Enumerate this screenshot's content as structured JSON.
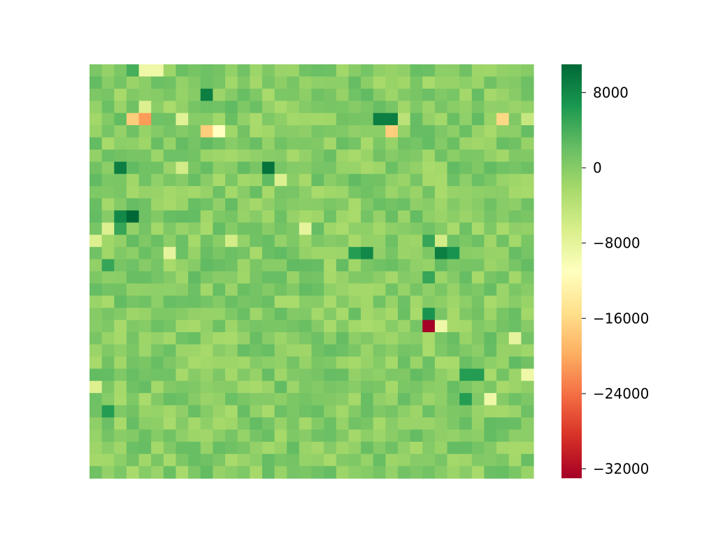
{
  "chart_data": {
    "type": "heatmap",
    "title": "",
    "xlabel": "",
    "ylabel": "",
    "rows": 34,
    "cols": 36,
    "colormap": "RdYlGn",
    "value_range": [
      -33000,
      11000
    ],
    "background_value": 0,
    "notable_cells": [
      {
        "row": 0,
        "col": 3,
        "value": 4000
      },
      {
        "row": 0,
        "col": 4,
        "value": -9000
      },
      {
        "row": 0,
        "col": 5,
        "value": -9000
      },
      {
        "row": 2,
        "col": 9,
        "value": 9000
      },
      {
        "row": 3,
        "col": 4,
        "value": -7000
      },
      {
        "row": 4,
        "col": 3,
        "value": -17000
      },
      {
        "row": 4,
        "col": 4,
        "value": -21000
      },
      {
        "row": 4,
        "col": 7,
        "value": -7500
      },
      {
        "row": 4,
        "col": 23,
        "value": 9000
      },
      {
        "row": 4,
        "col": 24,
        "value": 9000
      },
      {
        "row": 4,
        "col": 25,
        "value": -4000
      },
      {
        "row": 4,
        "col": 33,
        "value": -16000
      },
      {
        "row": 4,
        "col": 35,
        "value": -5000
      },
      {
        "row": 5,
        "col": 9,
        "value": -17000
      },
      {
        "row": 5,
        "col": 10,
        "value": -11000
      },
      {
        "row": 5,
        "col": 24,
        "value": -17000
      },
      {
        "row": 8,
        "col": 2,
        "value": 9000
      },
      {
        "row": 8,
        "col": 7,
        "value": -6000
      },
      {
        "row": 8,
        "col": 14,
        "value": 10000
      },
      {
        "row": 9,
        "col": 15,
        "value": -7000
      },
      {
        "row": 12,
        "col": 2,
        "value": 8000
      },
      {
        "row": 12,
        "col": 3,
        "value": 11000
      },
      {
        "row": 13,
        "col": 1,
        "value": -7000
      },
      {
        "row": 13,
        "col": 2,
        "value": 5000
      },
      {
        "row": 13,
        "col": 17,
        "value": -8000
      },
      {
        "row": 14,
        "col": 0,
        "value": -7000
      },
      {
        "row": 14,
        "col": 11,
        "value": -6000
      },
      {
        "row": 14,
        "col": 27,
        "value": 5000
      },
      {
        "row": 14,
        "col": 28,
        "value": -6000
      },
      {
        "row": 15,
        "col": 6,
        "value": -8000
      },
      {
        "row": 15,
        "col": 21,
        "value": 6000
      },
      {
        "row": 15,
        "col": 22,
        "value": 8000
      },
      {
        "row": 15,
        "col": 28,
        "value": 9000
      },
      {
        "row": 15,
        "col": 29,
        "value": 7000
      },
      {
        "row": 16,
        "col": 1,
        "value": 5000
      },
      {
        "row": 17,
        "col": 27,
        "value": 5000
      },
      {
        "row": 20,
        "col": 27,
        "value": 7000
      },
      {
        "row": 21,
        "col": 27,
        "value": -33000
      },
      {
        "row": 21,
        "col": 28,
        "value": -9000
      },
      {
        "row": 22,
        "col": 34,
        "value": -8000
      },
      {
        "row": 25,
        "col": 30,
        "value": 6000
      },
      {
        "row": 25,
        "col": 31,
        "value": 6000
      },
      {
        "row": 25,
        "col": 35,
        "value": -9000
      },
      {
        "row": 26,
        "col": 0,
        "value": -7000
      },
      {
        "row": 27,
        "col": 30,
        "value": 6000
      },
      {
        "row": 27,
        "col": 32,
        "value": -9000
      },
      {
        "row": 28,
        "col": 1,
        "value": 6000
      }
    ]
  },
  "colorbar": {
    "ticks": [
      8000,
      0,
      -8000,
      -16000,
      -24000,
      -32000
    ],
    "tick_labels": [
      "8000",
      "0",
      "−8000",
      "−16000",
      "−24000",
      "−32000"
    ]
  }
}
